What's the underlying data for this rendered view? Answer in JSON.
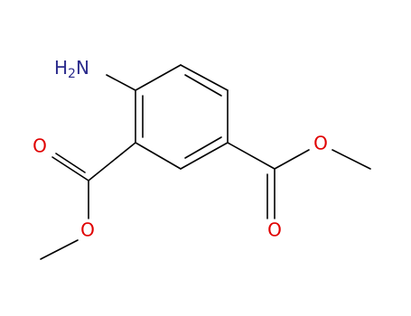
{
  "atoms": [
    {
      "label": {
        "main": "H",
        "sub": "2",
        "tail": "N"
      }
    },
    {
      "label": "O"
    },
    {
      "label": "O"
    },
    {
      "label": "O"
    },
    {
      "label": "O"
    }
  ]
}
